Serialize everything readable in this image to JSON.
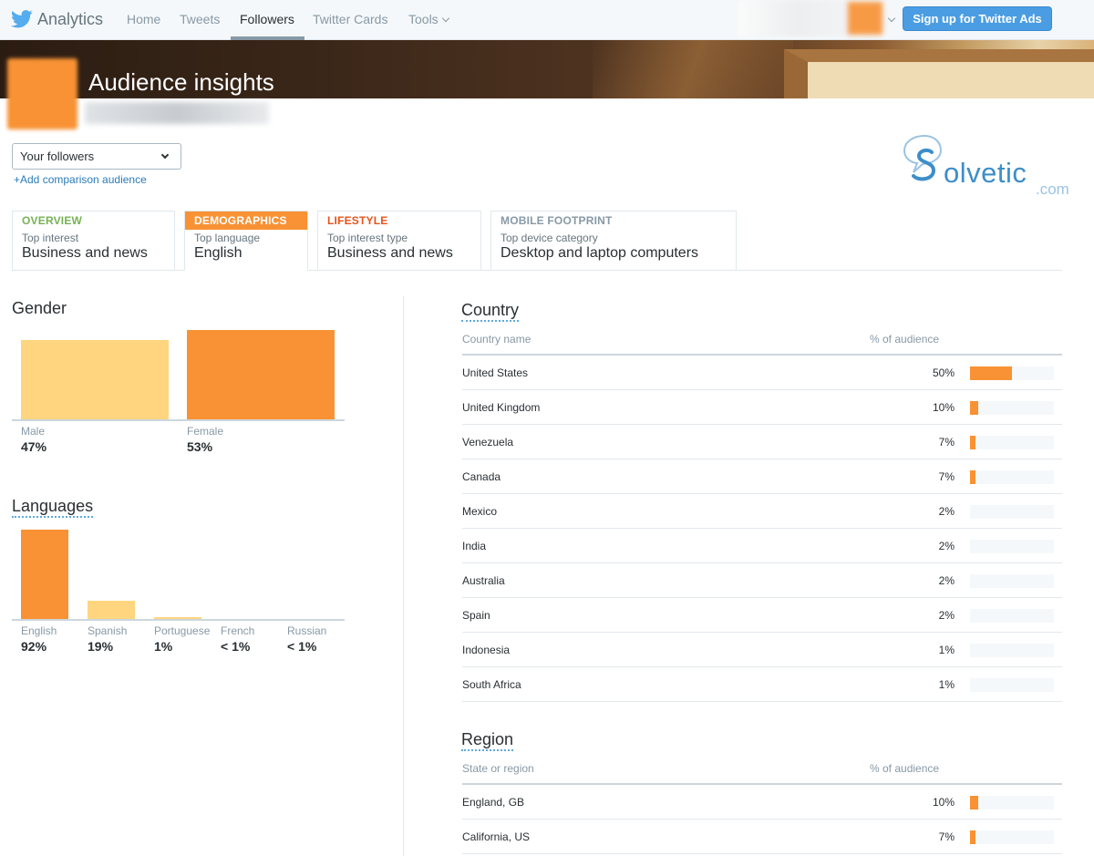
{
  "nav": {
    "brand": "Analytics",
    "links": [
      "Home",
      "Tweets",
      "Followers",
      "Twitter Cards",
      "Tools"
    ],
    "active": "Followers",
    "ads_button": "Sign up for Twitter Ads"
  },
  "header": {
    "title": "Audience insights"
  },
  "audience_select": {
    "value": "Your followers",
    "add_comparison": "+Add comparison audience"
  },
  "logo": {
    "word": "olvetic",
    "suffix": ".com"
  },
  "tabs": [
    {
      "head": "OVERVIEW",
      "sub": "Top interest",
      "value": "Business and news",
      "color": "#77b255"
    },
    {
      "head": "DEMOGRAPHICS",
      "sub": "Top language",
      "value": "English",
      "color": "#f89234",
      "active": true
    },
    {
      "head": "LIFESTYLE",
      "sub": "Top interest type",
      "value": "Business and news",
      "color": "#e5541c"
    },
    {
      "head": "MOBILE FOOTPRINT",
      "sub": "Top device category",
      "value": "Desktop and laptop computers",
      "color": "#8899a6"
    }
  ],
  "gender": {
    "title": "Gender",
    "items": [
      {
        "label": "Male",
        "value": "47%",
        "percent": 47,
        "color": "#ffd57f"
      },
      {
        "label": "Female",
        "value": "53%",
        "percent": 53,
        "color": "#f89234"
      }
    ]
  },
  "languages": {
    "title": "Languages",
    "items": [
      {
        "label": "English",
        "value": "92%",
        "percent": 92,
        "color": "#f89234"
      },
      {
        "label": "Spanish",
        "value": "19%",
        "percent": 19,
        "color": "#ffd57f"
      },
      {
        "label": "Portuguese",
        "value": "1%",
        "percent": 1,
        "color": "#ffd57f"
      },
      {
        "label": "French",
        "value": "< 1%",
        "percent": 0,
        "color": "#ffd57f"
      },
      {
        "label": "Russian",
        "value": "< 1%",
        "percent": 0,
        "color": "#ffd57f"
      }
    ]
  },
  "country": {
    "title": "Country",
    "col_name": "Country name",
    "col_pct": "% of audience",
    "rows": [
      {
        "name": "United States",
        "pct": "50%",
        "value": 50
      },
      {
        "name": "United Kingdom",
        "pct": "10%",
        "value": 10
      },
      {
        "name": "Venezuela",
        "pct": "7%",
        "value": 7
      },
      {
        "name": "Canada",
        "pct": "7%",
        "value": 7
      },
      {
        "name": "Mexico",
        "pct": "2%",
        "value": 2
      },
      {
        "name": "India",
        "pct": "2%",
        "value": 2
      },
      {
        "name": "Australia",
        "pct": "2%",
        "value": 2
      },
      {
        "name": "Spain",
        "pct": "2%",
        "value": 2
      },
      {
        "name": "Indonesia",
        "pct": "1%",
        "value": 1
      },
      {
        "name": "South Africa",
        "pct": "1%",
        "value": 1
      }
    ]
  },
  "region": {
    "title": "Region",
    "col_name": "State or region",
    "col_pct": "% of audience",
    "rows": [
      {
        "name": "England, GB",
        "pct": "10%",
        "value": 10
      },
      {
        "name": "California, US",
        "pct": "7%",
        "value": 7
      }
    ]
  }
}
